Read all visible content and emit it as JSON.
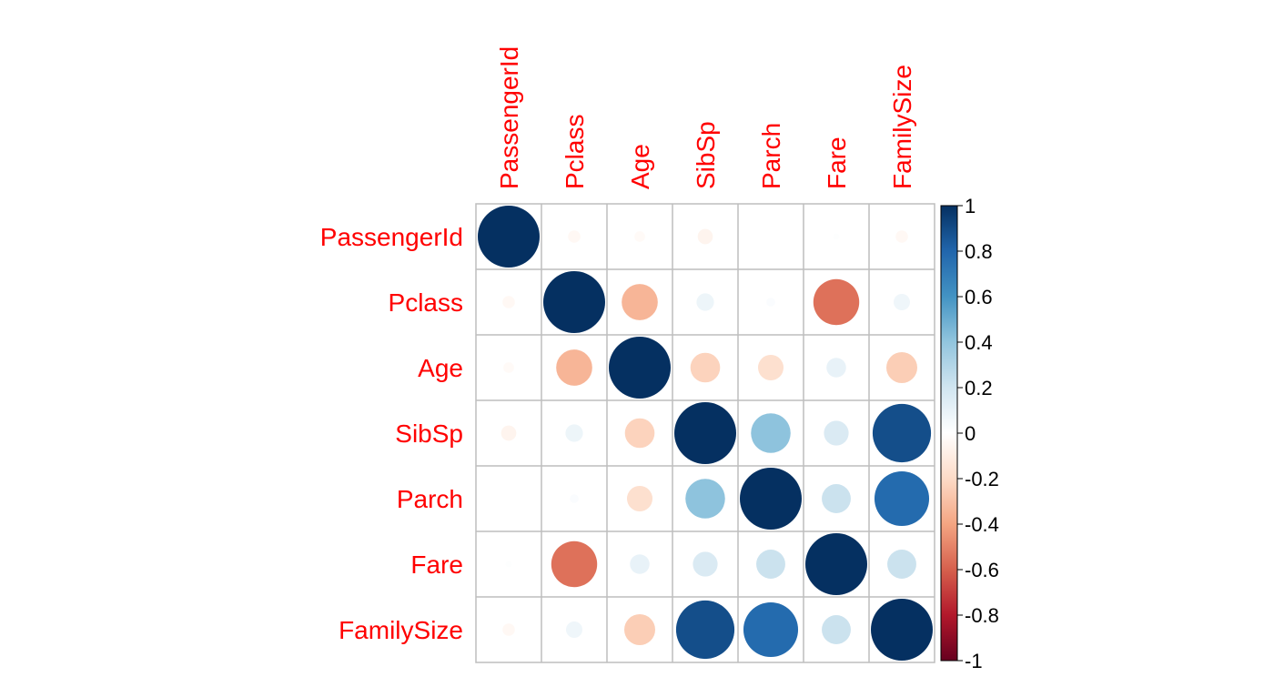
{
  "chart_data": {
    "type": "heatmap",
    "subtype": "correlation-circles",
    "variables": [
      "PassengerId",
      "Pclass",
      "Age",
      "SibSp",
      "Parch",
      "Fare",
      "FamilySize"
    ],
    "matrix": [
      [
        1.0,
        -0.04,
        -0.03,
        -0.06,
        0.0,
        0.01,
        -0.04
      ],
      [
        -0.04,
        1.0,
        -0.34,
        0.08,
        0.02,
        -0.55,
        0.07
      ],
      [
        -0.03,
        -0.34,
        1.0,
        -0.23,
        -0.17,
        0.1,
        -0.25
      ],
      [
        -0.06,
        0.08,
        -0.23,
        1.0,
        0.41,
        0.16,
        0.89
      ],
      [
        0.0,
        0.02,
        -0.17,
        0.41,
        1.0,
        0.22,
        0.78
      ],
      [
        0.01,
        -0.55,
        0.1,
        0.16,
        0.22,
        1.0,
        0.22
      ],
      [
        -0.04,
        0.07,
        -0.25,
        0.89,
        0.78,
        0.22,
        1.0
      ]
    ],
    "color_scale": {
      "range": [
        -1,
        1
      ],
      "ticks": [
        "1",
        "0.8",
        "0.6",
        "0.4",
        "0.2",
        "0",
        "-0.2",
        "-0.4",
        "-0.6",
        "-0.8",
        "-1"
      ],
      "stops": [
        {
          "v": -1.0,
          "color": "#67001f"
        },
        {
          "v": -0.8,
          "color": "#b2182b"
        },
        {
          "v": -0.6,
          "color": "#d6604d"
        },
        {
          "v": -0.4,
          "color": "#f4a582"
        },
        {
          "v": -0.2,
          "color": "#fddbc7"
        },
        {
          "v": 0.0,
          "color": "#ffffff"
        },
        {
          "v": 0.2,
          "color": "#d1e5f0"
        },
        {
          "v": 0.4,
          "color": "#92c5de"
        },
        {
          "v": 0.6,
          "color": "#4393c3"
        },
        {
          "v": 0.8,
          "color": "#2166ac"
        },
        {
          "v": 1.0,
          "color": "#053061"
        }
      ]
    },
    "label_color": "#ff0000",
    "grid": true,
    "legend": "right"
  }
}
